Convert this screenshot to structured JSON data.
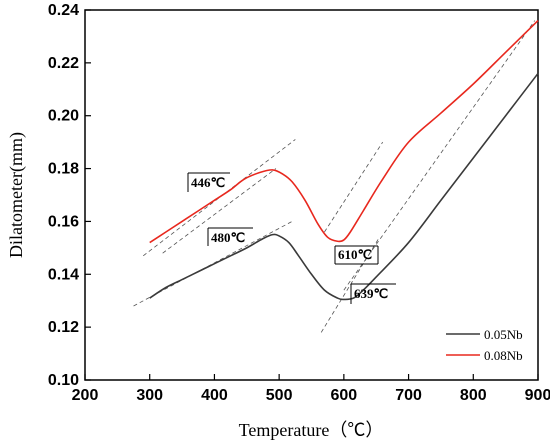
{
  "chart_data": {
    "type": "line",
    "title": "",
    "xlabel": "Temperature（℃）",
    "ylabel": "Dilatometer(mm)",
    "xlim": [
      200,
      900
    ],
    "ylim": [
      0.1,
      0.24
    ],
    "xticks": [
      "200",
      "300",
      "400",
      "500",
      "600",
      "700",
      "800",
      "900"
    ],
    "yticks": [
      "0.10",
      "0.12",
      "0.14",
      "0.16",
      "0.18",
      "0.20",
      "0.22",
      "0.24"
    ],
    "grid": false,
    "legend_position": "bottom-right",
    "series": [
      {
        "name": "0.05Nb",
        "color": "#3a3a3a",
        "x": [
          300,
          325,
          350,
          375,
          400,
          425,
          450,
          475,
          490,
          500,
          515,
          530,
          550,
          570,
          590,
          600,
          615,
          630,
          650,
          700,
          750,
          800,
          850,
          900
        ],
        "y": [
          0.131,
          0.135,
          0.138,
          0.141,
          0.144,
          0.147,
          0.15,
          0.1535,
          0.155,
          0.1545,
          0.152,
          0.147,
          0.14,
          0.134,
          0.131,
          0.1305,
          0.131,
          0.134,
          0.139,
          0.152,
          0.168,
          0.184,
          0.2,
          0.216
        ]
      },
      {
        "name": "0.08Nb",
        "color": "#e8281e",
        "x": [
          300,
          325,
          350,
          375,
          400,
          425,
          446,
          470,
          490,
          505,
          520,
          540,
          560,
          575,
          590,
          600,
          610,
          630,
          660,
          700,
          750,
          800,
          850,
          900
        ],
        "y": [
          0.152,
          0.156,
          0.16,
          0.164,
          0.168,
          0.172,
          0.176,
          0.1785,
          0.1795,
          0.178,
          0.175,
          0.168,
          0.159,
          0.154,
          0.1525,
          0.153,
          0.156,
          0.164,
          0.176,
          0.19,
          0.201,
          0.212,
          0.224,
          0.236
        ]
      }
    ],
    "annotations": [
      "446℃",
      "480℃",
      "610℃",
      "639℃"
    ]
  },
  "colors": {
    "tangent": "#555555",
    "axis": "#000000"
  }
}
